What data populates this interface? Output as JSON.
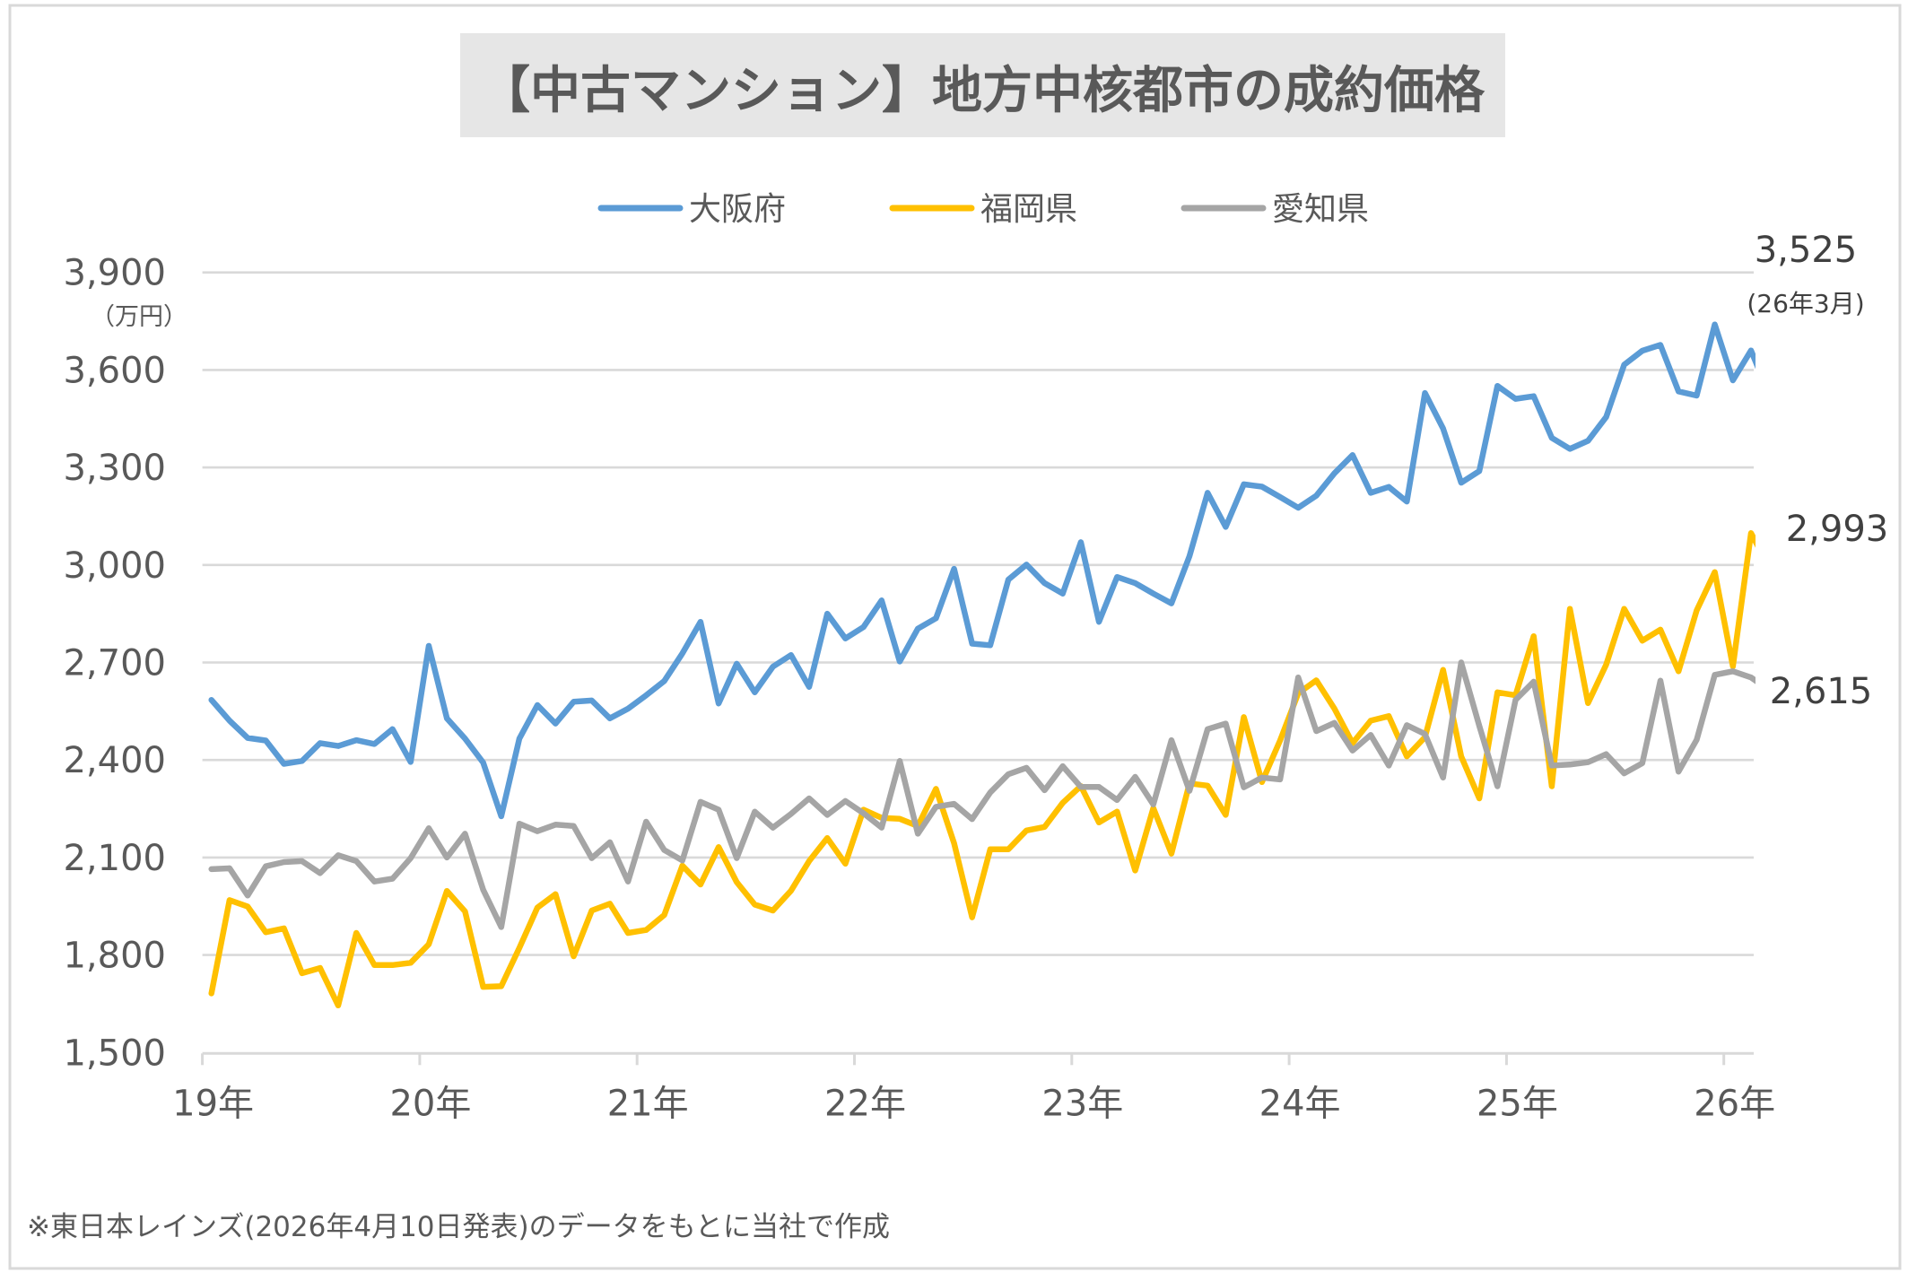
{
  "chart_data": {
    "type": "line",
    "title": "【中古マンション】地方中核都市の成約価格",
    "xlabel": "",
    "ylabel": "（万円）",
    "ylim": [
      1500,
      3900
    ],
    "y_ticks": [
      1500,
      1800,
      2100,
      2400,
      2700,
      3000,
      3300,
      3600,
      3900
    ],
    "y_tick_labels": [
      "1,500",
      "1,800",
      "2,100",
      "2,400",
      "2,700",
      "3,000",
      "3,300",
      "3,600",
      "3,900"
    ],
    "x_tick_labels": [
      "19年",
      "20年",
      "21年",
      "22年",
      "23年",
      "24年",
      "25年",
      "26年"
    ],
    "x_start": "2019-01",
    "x_end": "2026-03",
    "x_frequency": "monthly",
    "grid": true,
    "legend_position": "top-center",
    "series": [
      {
        "name": "大阪府",
        "color": "#5b9bd5",
        "values": [
          2585,
          2521,
          2468,
          2460,
          2388,
          2397,
          2452,
          2443,
          2461,
          2449,
          2495,
          2394,
          2751,
          2528,
          2466,
          2392,
          2227,
          2466,
          2569,
          2512,
          2579,
          2583,
          2528,
          2558,
          2599,
          2643,
          2728,
          2825,
          2574,
          2696,
          2608,
          2687,
          2723,
          2625,
          2850,
          2774,
          2809,
          2891,
          2703,
          2804,
          2836,
          2988,
          2758,
          2753,
          2955,
          3001,
          2944,
          2912,
          3070,
          2825,
          2963,
          2944,
          2912,
          2882,
          3027,
          3222,
          3117,
          3248,
          3241,
          3209,
          3176,
          3213,
          3282,
          3338,
          3222,
          3240,
          3195,
          3529,
          3420,
          3253,
          3289,
          3551,
          3511,
          3519,
          3391,
          3357,
          3382,
          3455,
          3616,
          3659,
          3677,
          3534,
          3521,
          3740,
          3568,
          3660,
          3525
        ]
      },
      {
        "name": "福岡県",
        "color": "#ffc000",
        "values": [
          1682,
          1969,
          1949,
          1870,
          1882,
          1744,
          1760,
          1645,
          1868,
          1769,
          1769,
          1776,
          1833,
          1997,
          1934,
          1702,
          1704,
          1822,
          1946,
          1987,
          1796,
          1937,
          1958,
          1868,
          1877,
          1923,
          2075,
          2017,
          2132,
          2024,
          1955,
          1937,
          1998,
          2089,
          2160,
          2081,
          2247,
          2222,
          2219,
          2197,
          2311,
          2144,
          1916,
          2125,
          2125,
          2183,
          2194,
          2268,
          2320,
          2208,
          2241,
          2060,
          2252,
          2112,
          2328,
          2321,
          2231,
          2532,
          2332,
          2460,
          2605,
          2645,
          2558,
          2452,
          2521,
          2535,
          2411,
          2470,
          2677,
          2411,
          2282,
          2608,
          2599,
          2781,
          2319,
          2865,
          2575,
          2693,
          2865,
          2767,
          2801,
          2673,
          2860,
          2978,
          2688,
          3098,
          2993
        ]
      },
      {
        "name": "愛知県",
        "color": "#a5a5a5",
        "values": [
          2064,
          2067,
          1983,
          2073,
          2086,
          2089,
          2052,
          2107,
          2089,
          2026,
          2035,
          2098,
          2190,
          2100,
          2173,
          2001,
          1886,
          2204,
          2181,
          2201,
          2197,
          2098,
          2147,
          2026,
          2210,
          2123,
          2091,
          2271,
          2247,
          2098,
          2241,
          2192,
          2234,
          2282,
          2231,
          2274,
          2236,
          2192,
          2397,
          2173,
          2256,
          2265,
          2218,
          2300,
          2356,
          2376,
          2307,
          2381,
          2317,
          2317,
          2277,
          2348,
          2263,
          2461,
          2305,
          2495,
          2512,
          2316,
          2346,
          2340,
          2654,
          2489,
          2514,
          2429,
          2477,
          2383,
          2507,
          2480,
          2346,
          2700,
          2505,
          2319,
          2585,
          2641,
          2383,
          2386,
          2393,
          2418,
          2359,
          2390,
          2644,
          2364,
          2462,
          2662,
          2673,
          2654,
          2615
        ]
      }
    ],
    "annotations": [
      {
        "series": "大阪府",
        "value_label": "3,525",
        "period_label": "(26年3月)"
      },
      {
        "series": "福岡県",
        "value_label": "2,993"
      },
      {
        "series": "愛知県",
        "value_label": "2,615"
      }
    ],
    "footnote": "※東日本レインズ(2026年4月10日発表)のデータをもとに当社で作成"
  }
}
